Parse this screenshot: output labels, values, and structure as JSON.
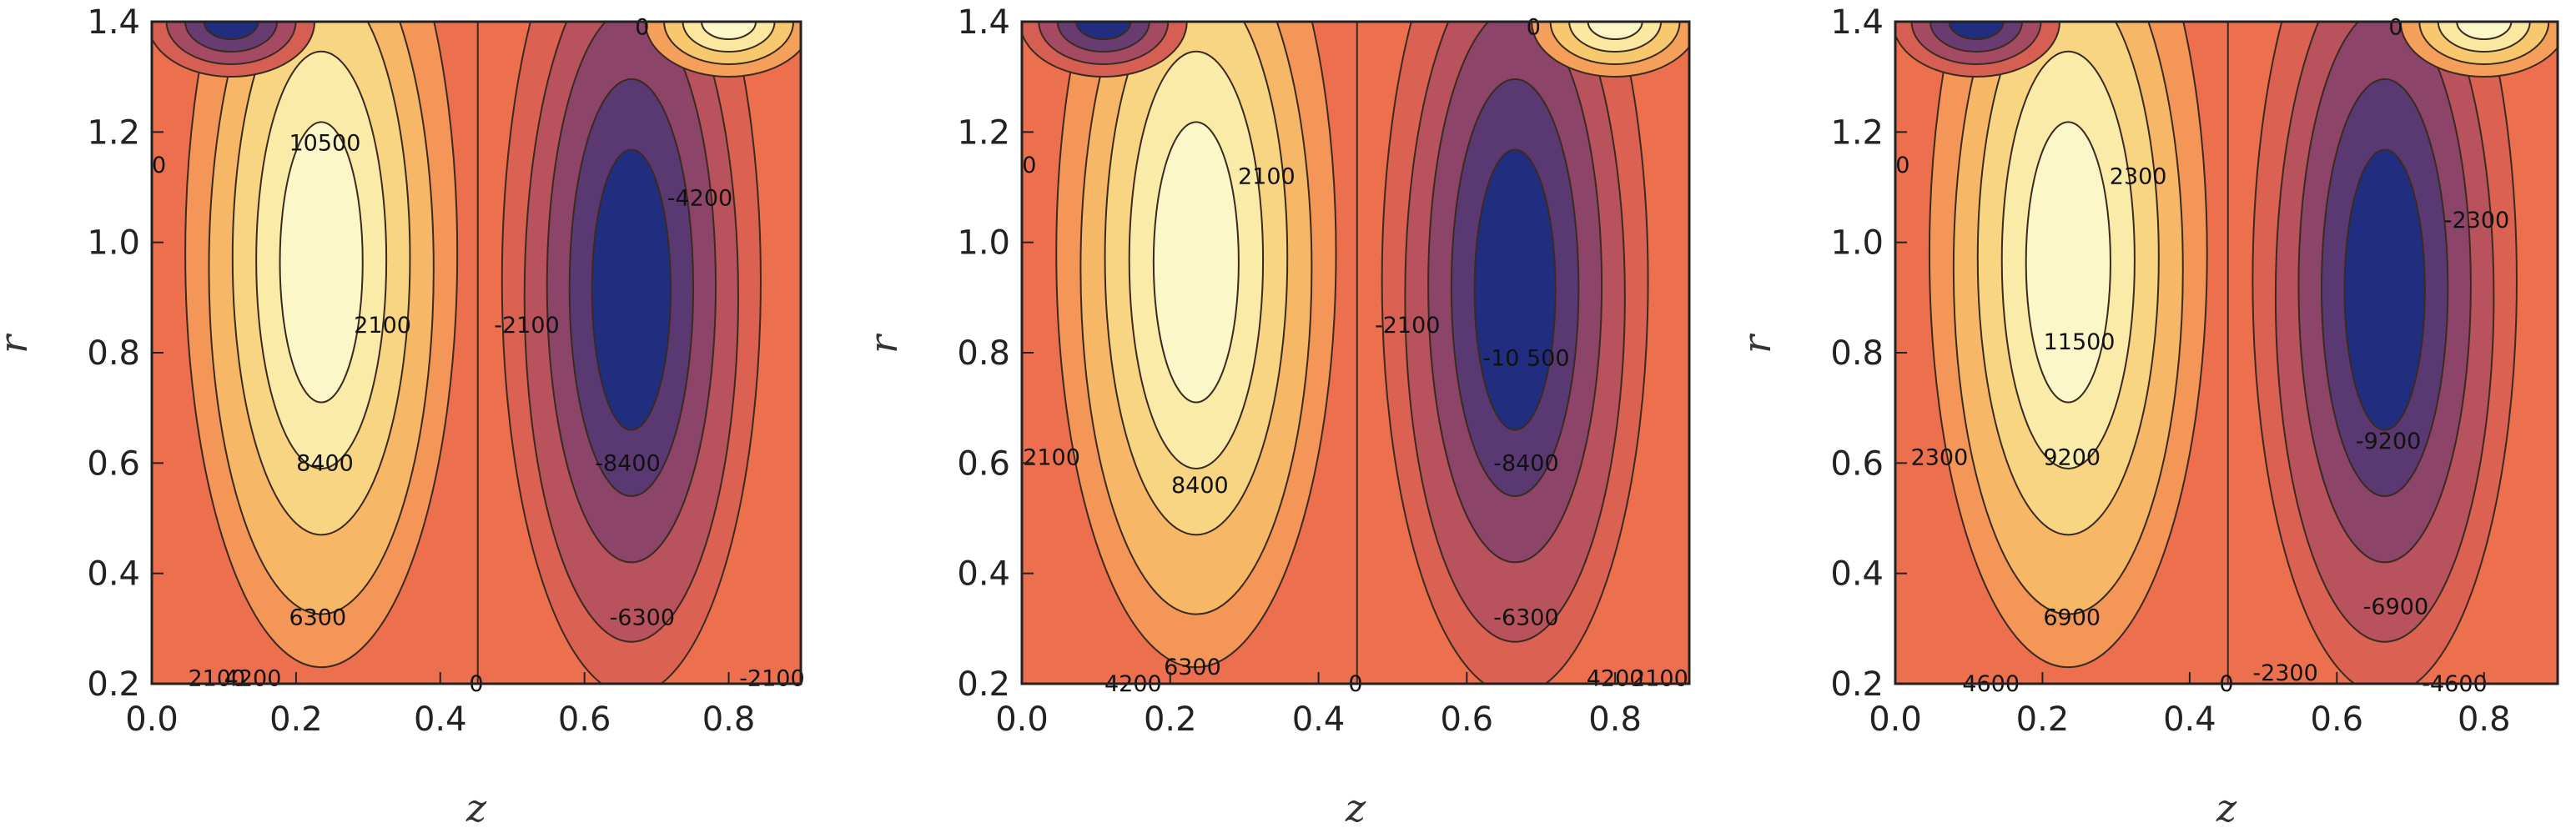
{
  "chart_data": [
    {
      "type": "contour",
      "xlabel": "z",
      "ylabel": "r",
      "xlim": [
        0,
        0.9
      ],
      "ylim": [
        0.2,
        1.4
      ],
      "xticks": [
        "0.0",
        "0.2",
        "0.4",
        "0.6",
        "0.8"
      ],
      "yticks": [
        "0.2",
        "0.4",
        "0.6",
        "0.8",
        "1.0",
        "1.2",
        "1.4"
      ],
      "contour_labels": [
        {
          "text": "10500",
          "x": 0.24,
          "y": 1.18
        },
        {
          "text": "2100",
          "x": 0.32,
          "y": 0.85
        },
        {
          "text": "8400",
          "x": 0.24,
          "y": 0.6
        },
        {
          "text": "6300",
          "x": 0.23,
          "y": 0.32
        },
        {
          "text": "2100",
          "x": 0.09,
          "y": 0.21
        },
        {
          "text": "4200",
          "x": 0.14,
          "y": 0.21
        },
        {
          "text": "0",
          "x": 0.01,
          "y": 1.14
        },
        {
          "text": "-2100",
          "x": 0.52,
          "y": 0.85
        },
        {
          "text": "-4200",
          "x": 0.76,
          "y": 1.08
        },
        {
          "text": "-8400",
          "x": 0.66,
          "y": 0.6
        },
        {
          "text": "-6300",
          "x": 0.68,
          "y": 0.32
        },
        {
          "text": "-2100",
          "x": 0.86,
          "y": 0.21
        },
        {
          "text": "0",
          "x": 0.45,
          "y": 0.2
        },
        {
          "text": "0",
          "x": 0.68,
          "y": 1.39
        }
      ]
    },
    {
      "type": "contour",
      "xlabel": "z",
      "ylabel": "r",
      "xlim": [
        0,
        0.9
      ],
      "ylim": [
        0.2,
        1.4
      ],
      "xticks": [
        "0.0",
        "0.2",
        "0.4",
        "0.6",
        "0.8"
      ],
      "yticks": [
        "0.2",
        "0.4",
        "0.6",
        "0.8",
        "1.0",
        "1.2",
        "1.4"
      ],
      "contour_labels": [
        {
          "text": "2100",
          "x": 0.33,
          "y": 1.12
        },
        {
          "text": "2100",
          "x": 0.04,
          "y": 0.61
        },
        {
          "text": "8400",
          "x": 0.24,
          "y": 0.56
        },
        {
          "text": "6300",
          "x": 0.23,
          "y": 0.23
        },
        {
          "text": "4200",
          "x": 0.15,
          "y": 0.2
        },
        {
          "text": "0",
          "x": 0.01,
          "y": 1.14
        },
        {
          "text": "-2100",
          "x": 0.52,
          "y": 0.85
        },
        {
          "text": "-10 500",
          "x": 0.68,
          "y": 0.79
        },
        {
          "text": "-8400",
          "x": 0.68,
          "y": 0.6
        },
        {
          "text": "-6300",
          "x": 0.68,
          "y": 0.32
        },
        {
          "text": "4200",
          "x": 0.8,
          "y": 0.21
        },
        {
          "text": "2100",
          "x": 0.86,
          "y": 0.21
        },
        {
          "text": "0",
          "x": 0.45,
          "y": 0.2
        },
        {
          "text": "0",
          "x": 0.69,
          "y": 1.39
        }
      ]
    },
    {
      "type": "contour",
      "xlabel": "z",
      "ylabel": "r",
      "xlim": [
        0,
        0.9
      ],
      "ylim": [
        0.2,
        1.4
      ],
      "xticks": [
        "0.0",
        "0.2",
        "0.4",
        "0.6",
        "0.8"
      ],
      "yticks": [
        "0.2",
        "0.4",
        "0.6",
        "0.8",
        "1.0",
        "1.2",
        "1.4"
      ],
      "contour_labels": [
        {
          "text": "2300",
          "x": 0.33,
          "y": 1.12
        },
        {
          "text": "11500",
          "x": 0.25,
          "y": 0.82
        },
        {
          "text": "2300",
          "x": 0.06,
          "y": 0.61
        },
        {
          "text": "9200",
          "x": 0.24,
          "y": 0.61
        },
        {
          "text": "6900",
          "x": 0.24,
          "y": 0.32
        },
        {
          "text": "4600",
          "x": 0.13,
          "y": 0.2
        },
        {
          "text": "0",
          "x": 0.01,
          "y": 1.14
        },
        {
          "text": "-2300",
          "x": 0.79,
          "y": 1.04
        },
        {
          "text": "-9200",
          "x": 0.67,
          "y": 0.64
        },
        {
          "text": "-6900",
          "x": 0.68,
          "y": 0.34
        },
        {
          "text": "-2300",
          "x": 0.53,
          "y": 0.22
        },
        {
          "text": "-4600",
          "x": 0.76,
          "y": 0.2
        },
        {
          "text": "0",
          "x": 0.45,
          "y": 0.2
        },
        {
          "text": "0",
          "x": 0.68,
          "y": 1.39
        }
      ]
    }
  ]
}
